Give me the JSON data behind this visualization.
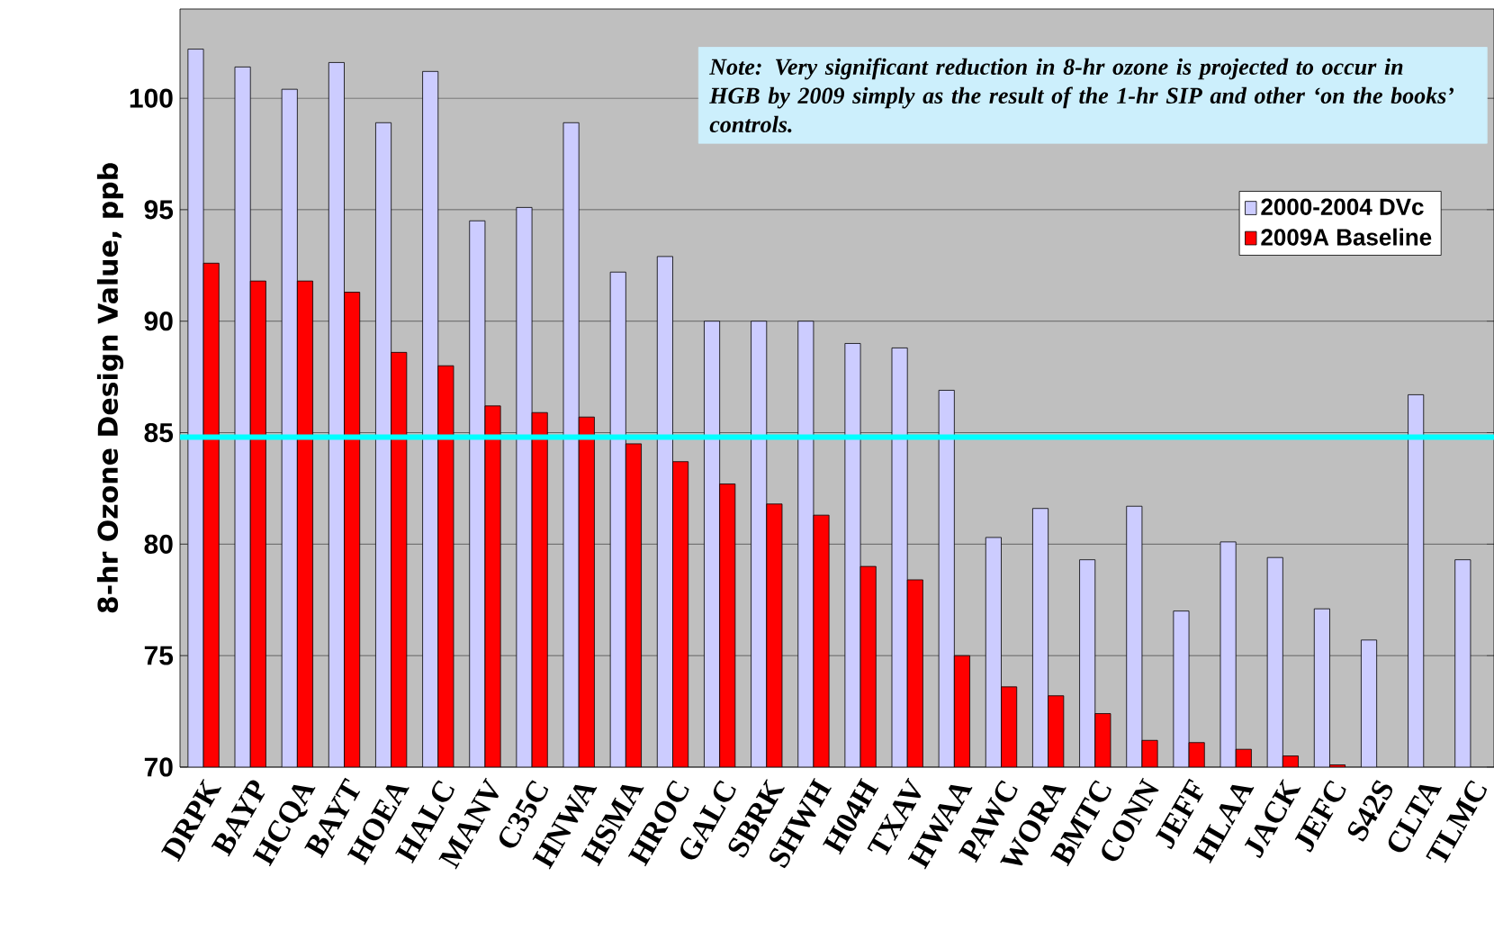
{
  "chart_data": {
    "type": "bar",
    "ylabel": "8-hr Ozone Design Value, ppb",
    "categories": [
      "DRPK",
      "BAYP",
      "HCQA",
      "BAYT",
      "HOEA",
      "HALC",
      "MANV",
      "C35C",
      "HNWA",
      "HSMA",
      "HROC",
      "GALC",
      "SBRK",
      "SHWH",
      "H04H",
      "TXAV",
      "HWAA",
      "PAWC",
      "WORA",
      "BMTC",
      "CONN",
      "JEFF",
      "HLAA",
      "JACK",
      "JEFC",
      "S42S",
      "CLTA",
      "TLMC"
    ],
    "series": [
      {
        "name": "2000-2004 DVc",
        "color": "#ccccff",
        "values": [
          102.2,
          101.4,
          100.4,
          101.6,
          98.9,
          101.2,
          94.5,
          95.1,
          98.9,
          92.2,
          92.9,
          90.0,
          90.0,
          90.0,
          89.0,
          88.8,
          86.9,
          80.3,
          81.6,
          79.3,
          81.7,
          77.0,
          80.1,
          79.4,
          77.1,
          75.7,
          86.7,
          79.3
        ]
      },
      {
        "name": "2009A Baseline",
        "color": "#ff0000",
        "values": [
          92.6,
          91.8,
          91.8,
          91.3,
          88.6,
          88.0,
          86.2,
          85.9,
          85.7,
          84.5,
          83.7,
          82.7,
          81.8,
          81.3,
          79.0,
          78.4,
          75.0,
          73.6,
          73.2,
          72.4,
          71.2,
          71.1,
          70.8,
          70.5,
          70.1,
          null,
          null,
          null
        ]
      }
    ],
    "ylim": [
      70,
      104
    ],
    "yticks": [
      70,
      75,
      80,
      85,
      90,
      95,
      100
    ],
    "grid": "y",
    "legend": "top right",
    "ref_lines": [
      {
        "axis": "y",
        "value": 84.8,
        "color": "#00ffff"
      }
    ],
    "annotations": [
      "*Note:  Very significant reduction in 8-hr ozone is projected to occur in HGB by 2009 simply as the result of the 1-hr SIP and other ‘on the books’ controls.*"
    ]
  }
}
